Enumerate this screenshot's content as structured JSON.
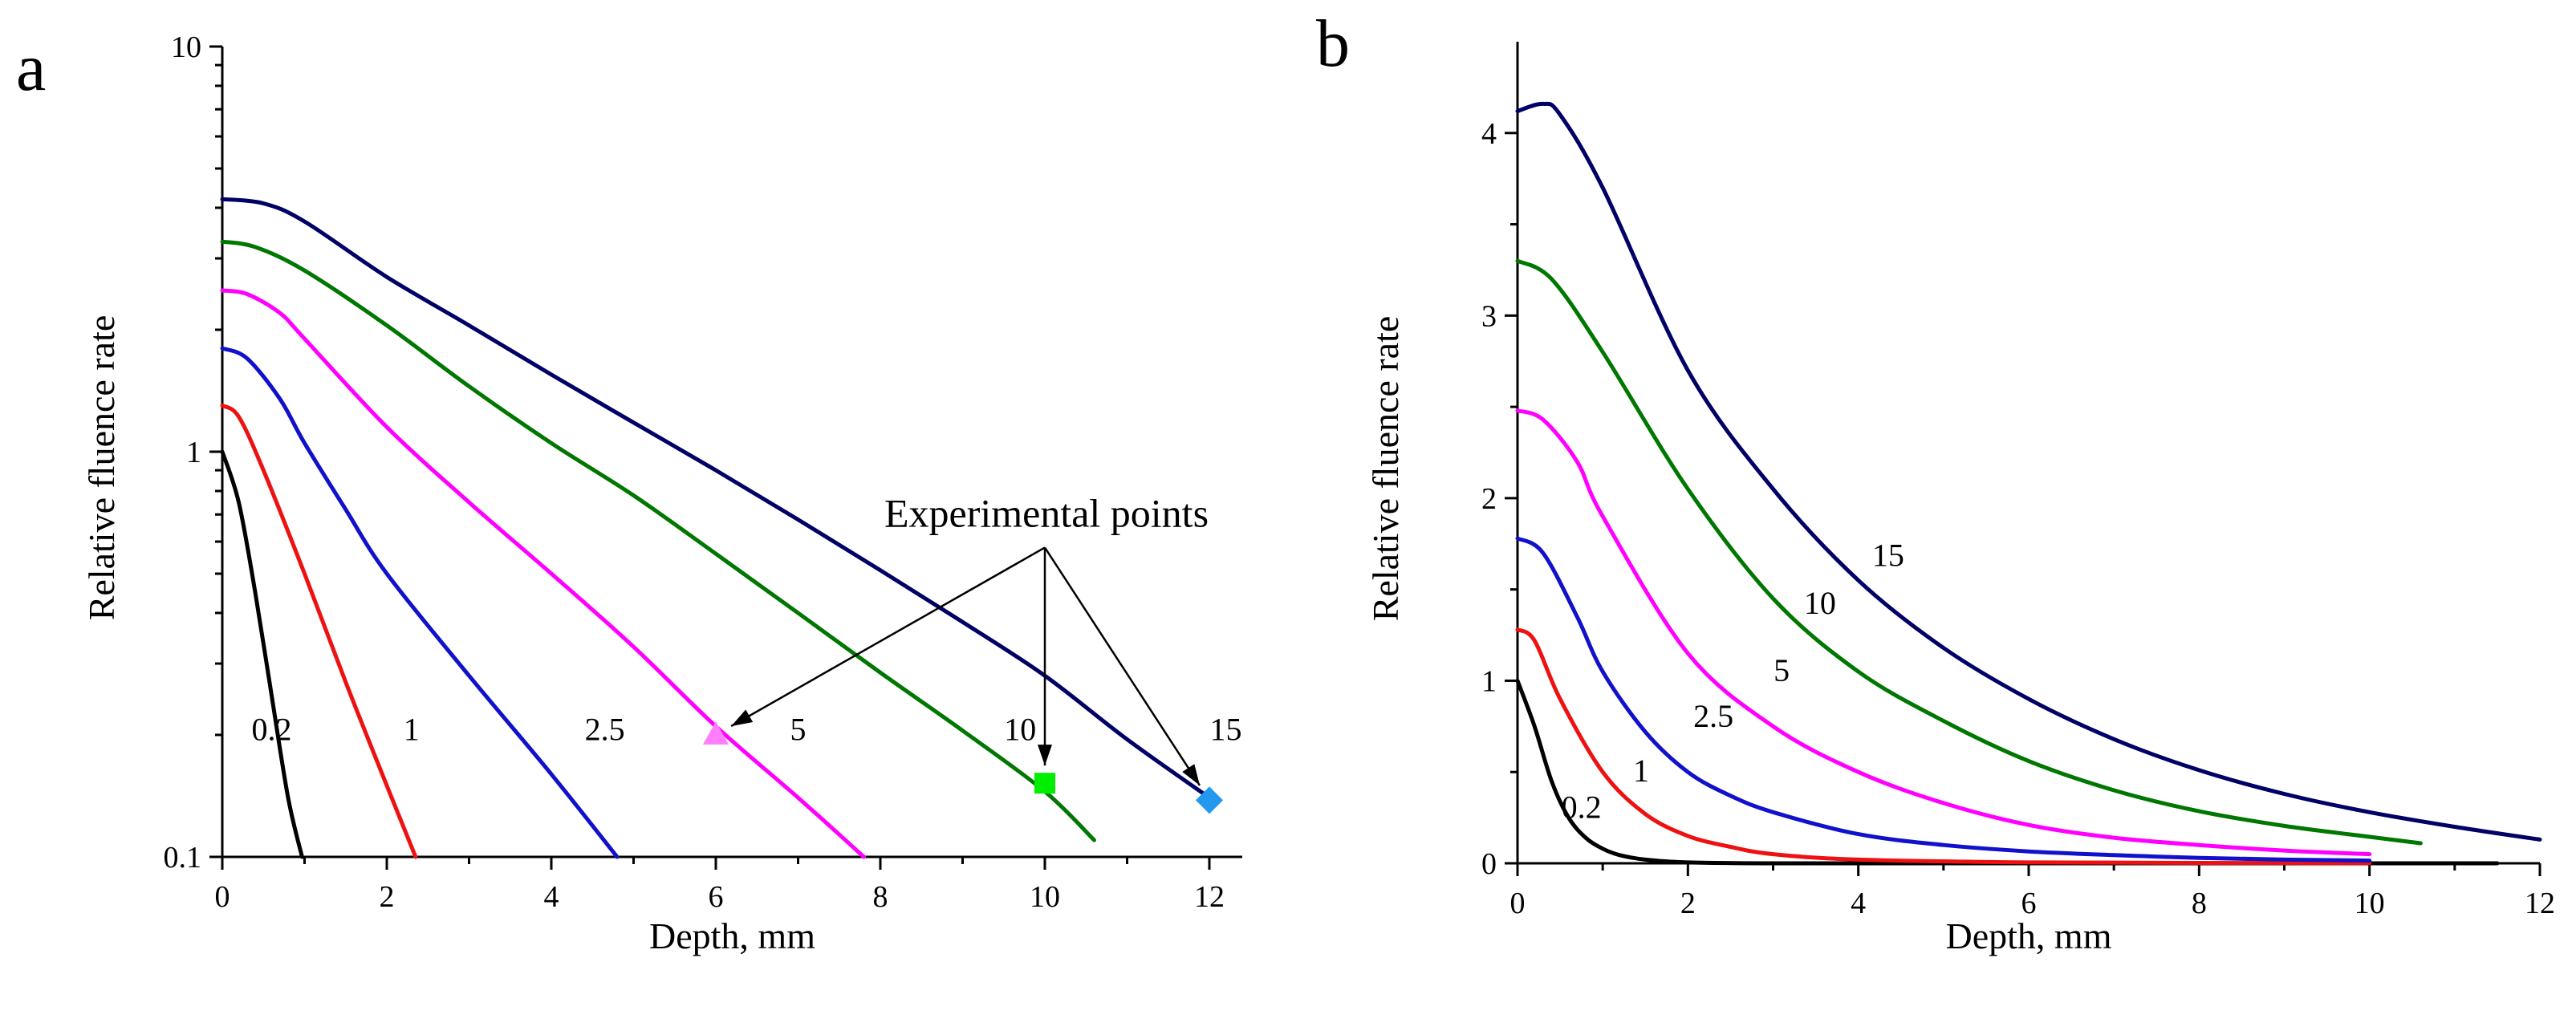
{
  "chart_data": [
    {
      "panel": "a",
      "type": "line",
      "yscale": "log",
      "xlabel": "Depth, mm",
      "ylabel": "Relative fluence rate",
      "xlim": [
        0,
        12.4
      ],
      "ylim": [
        0.1,
        10
      ],
      "xticks": [
        0,
        2,
        4,
        6,
        8,
        10,
        12
      ],
      "xtick_labels": [
        "0",
        "2",
        "4",
        "6",
        "8",
        "10",
        "12"
      ],
      "yticks": [
        0.1,
        1,
        10
      ],
      "ytick_labels": [
        "0.1",
        "1",
        "10"
      ],
      "series": [
        {
          "name": "0.2",
          "color": "#000000",
          "x": [
            0,
            0.2,
            0.4,
            0.6,
            0.8,
            0.97
          ],
          "y": [
            1.0,
            0.75,
            0.45,
            0.25,
            0.14,
            0.1
          ],
          "label_x": 0.6,
          "label_y": 0.205
        },
        {
          "name": "1",
          "color": "#ee1111",
          "x": [
            0,
            0.2,
            0.5,
            1.0,
            1.5,
            2.0,
            2.35
          ],
          "y": [
            1.3,
            1.22,
            0.9,
            0.5,
            0.27,
            0.15,
            0.1
          ],
          "label_x": 2.3,
          "label_y": 0.205
        },
        {
          "name": "2.5",
          "color": "#1111cc",
          "x": [
            0,
            0.3,
            0.7,
            1.0,
            1.5,
            2.0,
            3.0,
            4.0,
            4.8
          ],
          "y": [
            1.8,
            1.7,
            1.35,
            1.05,
            0.72,
            0.5,
            0.28,
            0.16,
            0.1
          ],
          "label_x": 4.65,
          "label_y": 0.205
        },
        {
          "name": "5",
          "color": "#ff00ff",
          "x": [
            0,
            0.3,
            0.7,
            1.0,
            2.0,
            3.0,
            4.0,
            5.0,
            6.0,
            7.0,
            7.8
          ],
          "y": [
            2.5,
            2.45,
            2.2,
            1.9,
            1.15,
            0.75,
            0.5,
            0.33,
            0.21,
            0.14,
            0.1
          ],
          "label_x": 7.0,
          "label_y": 0.205
        },
        {
          "name": "10",
          "color": "#007700",
          "x": [
            0,
            0.4,
            1.0,
            2.0,
            3.0,
            4.0,
            5.0,
            6.0,
            7.0,
            8.0,
            9.0,
            10.0,
            10.6
          ],
          "y": [
            3.3,
            3.2,
            2.8,
            2.05,
            1.45,
            1.05,
            0.78,
            0.56,
            0.4,
            0.285,
            0.205,
            0.145,
            0.11
          ],
          "label_x": 9.7,
          "label_y": 0.205
        },
        {
          "name": "15",
          "color": "#000066",
          "x": [
            0,
            0.5,
            1.0,
            2.0,
            3.0,
            4.0,
            5.0,
            6.0,
            7.0,
            8.0,
            9.0,
            10.0,
            11.0,
            12.0
          ],
          "y": [
            4.2,
            4.1,
            3.7,
            2.7,
            2.05,
            1.55,
            1.18,
            0.9,
            0.68,
            0.51,
            0.38,
            0.28,
            0.195,
            0.14
          ],
          "label_x": 12.2,
          "label_y": 0.205
        }
      ],
      "experimental_points": [
        {
          "name": "5",
          "x": 6,
          "y": 0.2,
          "marker": "triangle",
          "color": "#ff7fff"
        },
        {
          "name": "10",
          "x": 10,
          "y": 0.152,
          "marker": "square",
          "color": "#00ee00"
        },
        {
          "name": "15",
          "x": 12,
          "y": 0.138,
          "marker": "diamond",
          "color": "#2299ee"
        }
      ],
      "annotation": {
        "text": "Experimental points",
        "anchor_x": 10.0,
        "anchor_y": 0.58
      }
    },
    {
      "panel": "b",
      "type": "line",
      "yscale": "linear",
      "xlabel": "Depth, mm",
      "ylabel": "Relative fluence rate",
      "xlim": [
        0,
        12
      ],
      "ylim": [
        0,
        4.5
      ],
      "xticks": [
        0,
        2,
        4,
        6,
        8,
        10,
        12
      ],
      "xtick_labels": [
        "0",
        "2",
        "4",
        "6",
        "8",
        "10",
        "12"
      ],
      "yticks": [
        0,
        1,
        2,
        3,
        4
      ],
      "ytick_labels": [
        "0",
        "1",
        "2",
        "3",
        "4"
      ],
      "series": [
        {
          "name": "0.2",
          "color": "#000000",
          "x": [
            0,
            0.2,
            0.4,
            0.6,
            0.8,
            1.0,
            1.2,
            1.5,
            2.0,
            3.0,
            6.0,
            11.5
          ],
          "y": [
            1.0,
            0.75,
            0.45,
            0.25,
            0.14,
            0.08,
            0.045,
            0.02,
            0.005,
            0,
            0,
            0
          ],
          "label_x": 0.75,
          "label_y": 0.3
        },
        {
          "name": "1",
          "color": "#ee1111",
          "x": [
            0,
            0.2,
            0.5,
            1.0,
            1.5,
            2.0,
            2.5,
            3.0,
            4.0,
            6.0,
            8.0,
            10.0
          ],
          "y": [
            1.28,
            1.22,
            0.9,
            0.5,
            0.27,
            0.15,
            0.09,
            0.05,
            0.02,
            0.005,
            0.002,
            0.001
          ],
          "label_x": 1.45,
          "label_y": 0.5
        },
        {
          "name": "2.5",
          "color": "#1111cc",
          "x": [
            0,
            0.3,
            0.7,
            1.0,
            1.5,
            2.0,
            2.5,
            3.0,
            4.0,
            5.0,
            6.0,
            7.0,
            8.0,
            9.0,
            10.0
          ],
          "y": [
            1.78,
            1.7,
            1.35,
            1.05,
            0.72,
            0.5,
            0.37,
            0.28,
            0.16,
            0.1,
            0.065,
            0.045,
            0.03,
            0.02,
            0.015
          ],
          "label_x": 2.3,
          "label_y": 0.8
        },
        {
          "name": "5",
          "color": "#ff00ff",
          "x": [
            0,
            0.3,
            0.7,
            1.0,
            2.0,
            3.0,
            4.0,
            5.0,
            6.0,
            7.0,
            8.0,
            9.0,
            10.0
          ],
          "y": [
            2.48,
            2.43,
            2.2,
            1.9,
            1.15,
            0.75,
            0.5,
            0.33,
            0.21,
            0.14,
            0.1,
            0.07,
            0.05
          ],
          "label_x": 3.1,
          "label_y": 1.05
        },
        {
          "name": "10",
          "color": "#007700",
          "x": [
            0,
            0.4,
            1.0,
            2.0,
            3.0,
            4.0,
            5.0,
            6.0,
            7.0,
            8.0,
            9.0,
            10.0,
            10.6
          ],
          "y": [
            3.3,
            3.2,
            2.8,
            2.05,
            1.45,
            1.05,
            0.78,
            0.56,
            0.4,
            0.285,
            0.205,
            0.145,
            0.11
          ],
          "label_x": 3.55,
          "label_y": 1.42
        },
        {
          "name": "15",
          "color": "#000066",
          "x": [
            0,
            0.3,
            0.5,
            1.0,
            2.0,
            3.0,
            4.0,
            5.0,
            6.0,
            7.0,
            8.0,
            9.0,
            10.0,
            11.0,
            12.0
          ],
          "y": [
            4.12,
            4.16,
            4.1,
            3.7,
            2.7,
            2.05,
            1.55,
            1.18,
            0.9,
            0.68,
            0.51,
            0.38,
            0.28,
            0.2,
            0.13
          ],
          "label_x": 4.35,
          "label_y": 1.68
        }
      ]
    }
  ]
}
